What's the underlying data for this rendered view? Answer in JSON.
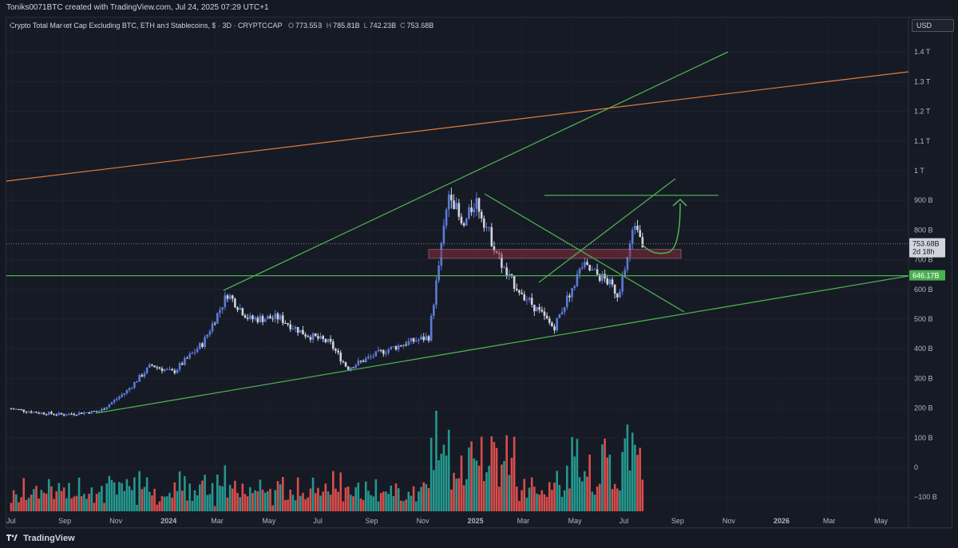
{
  "header": {
    "credit": "Toniks0071BTC created with TradingView.com, Jul 24, 2025 07:29 UTC+1"
  },
  "legend": {
    "symbol": "Crypto Total Market Cap Excluding BTC, ETH and Stablecoins, $ · 3D · CRYPTOCAP",
    "open_label": "O",
    "open": "773.55B",
    "high_label": "H",
    "high": "785.81B",
    "low_label": "L",
    "low": "742.23B",
    "close_label": "C",
    "close": "753.68B"
  },
  "currency_button": "USD",
  "price_tags": {
    "last": "753.68B",
    "countdown": "2d 18h",
    "level": "646.17B"
  },
  "footer": {
    "brand": "TradingView"
  },
  "colors": {
    "bull": "#5b7bd8",
    "bear": "#d1d4dc",
    "vol_up": "#26a69a",
    "vol_down": "#ef5350",
    "trend": "#4caf50",
    "resistance": "#e07b39",
    "zone": "#8a2d3a"
  },
  "chart_data": {
    "type": "candlestick",
    "title": "Crypto Total Market Cap Excluding BTC, ETH and Stablecoins",
    "x_ticks": [
      "Jul",
      "Sep",
      "Nov",
      "2024",
      "Mar",
      "May",
      "Jul",
      "Sep",
      "Nov",
      "2025",
      "Mar",
      "May",
      "Jul",
      "Sep",
      "Nov",
      "2026",
      "Mar",
      "May"
    ],
    "y_ticks": [
      "1.4 T",
      "1.3 T",
      "1.2 T",
      "1.1 T",
      "1 T",
      "900 B",
      "800 B",
      "700 B",
      "600 B",
      "500 B",
      "400 B",
      "300 B",
      "200 B",
      "100 B",
      "0",
      "−100 B"
    ],
    "y_tick_values": [
      1400,
      1300,
      1200,
      1100,
      1000,
      900,
      800,
      700,
      600,
      500,
      400,
      300,
      200,
      100,
      0,
      -100
    ],
    "y_unit": "B USD",
    "close_series": [
      {
        "x": "2023-07-01",
        "v": 198
      },
      {
        "x": "2023-08-01",
        "v": 185
      },
      {
        "x": "2023-09-01",
        "v": 178
      },
      {
        "x": "2023-10-15",
        "v": 190
      },
      {
        "x": "2023-11-15",
        "v": 255
      },
      {
        "x": "2023-12-15",
        "v": 345
      },
      {
        "x": "2024-01-10",
        "v": 320
      },
      {
        "x": "2024-02-15",
        "v": 420
      },
      {
        "x": "2024-03-15",
        "v": 585
      },
      {
        "x": "2024-04-10",
        "v": 500
      },
      {
        "x": "2024-05-15",
        "v": 505
      },
      {
        "x": "2024-06-15",
        "v": 450
      },
      {
        "x": "2024-07-15",
        "v": 420
      },
      {
        "x": "2024-08-05",
        "v": 335
      },
      {
        "x": "2024-09-15",
        "v": 390
      },
      {
        "x": "2024-10-15",
        "v": 420
      },
      {
        "x": "2024-11-10",
        "v": 440
      },
      {
        "x": "2024-11-25",
        "v": 740
      },
      {
        "x": "2024-12-05",
        "v": 945
      },
      {
        "x": "2024-12-20",
        "v": 800
      },
      {
        "x": "2025-01-05",
        "v": 905
      },
      {
        "x": "2025-01-25",
        "v": 760
      },
      {
        "x": "2025-02-10",
        "v": 650
      },
      {
        "x": "2025-03-10",
        "v": 560
      },
      {
        "x": "2025-04-08",
        "v": 470
      },
      {
        "x": "2025-05-12",
        "v": 680
      },
      {
        "x": "2025-06-10",
        "v": 630
      },
      {
        "x": "2025-06-25",
        "v": 580
      },
      {
        "x": "2025-07-15",
        "v": 840
      },
      {
        "x": "2025-07-24",
        "v": 753.68
      }
    ],
    "horizontal_levels": [
      646.17,
      917
    ],
    "resistance_zone": [
      705,
      735
    ]
  }
}
